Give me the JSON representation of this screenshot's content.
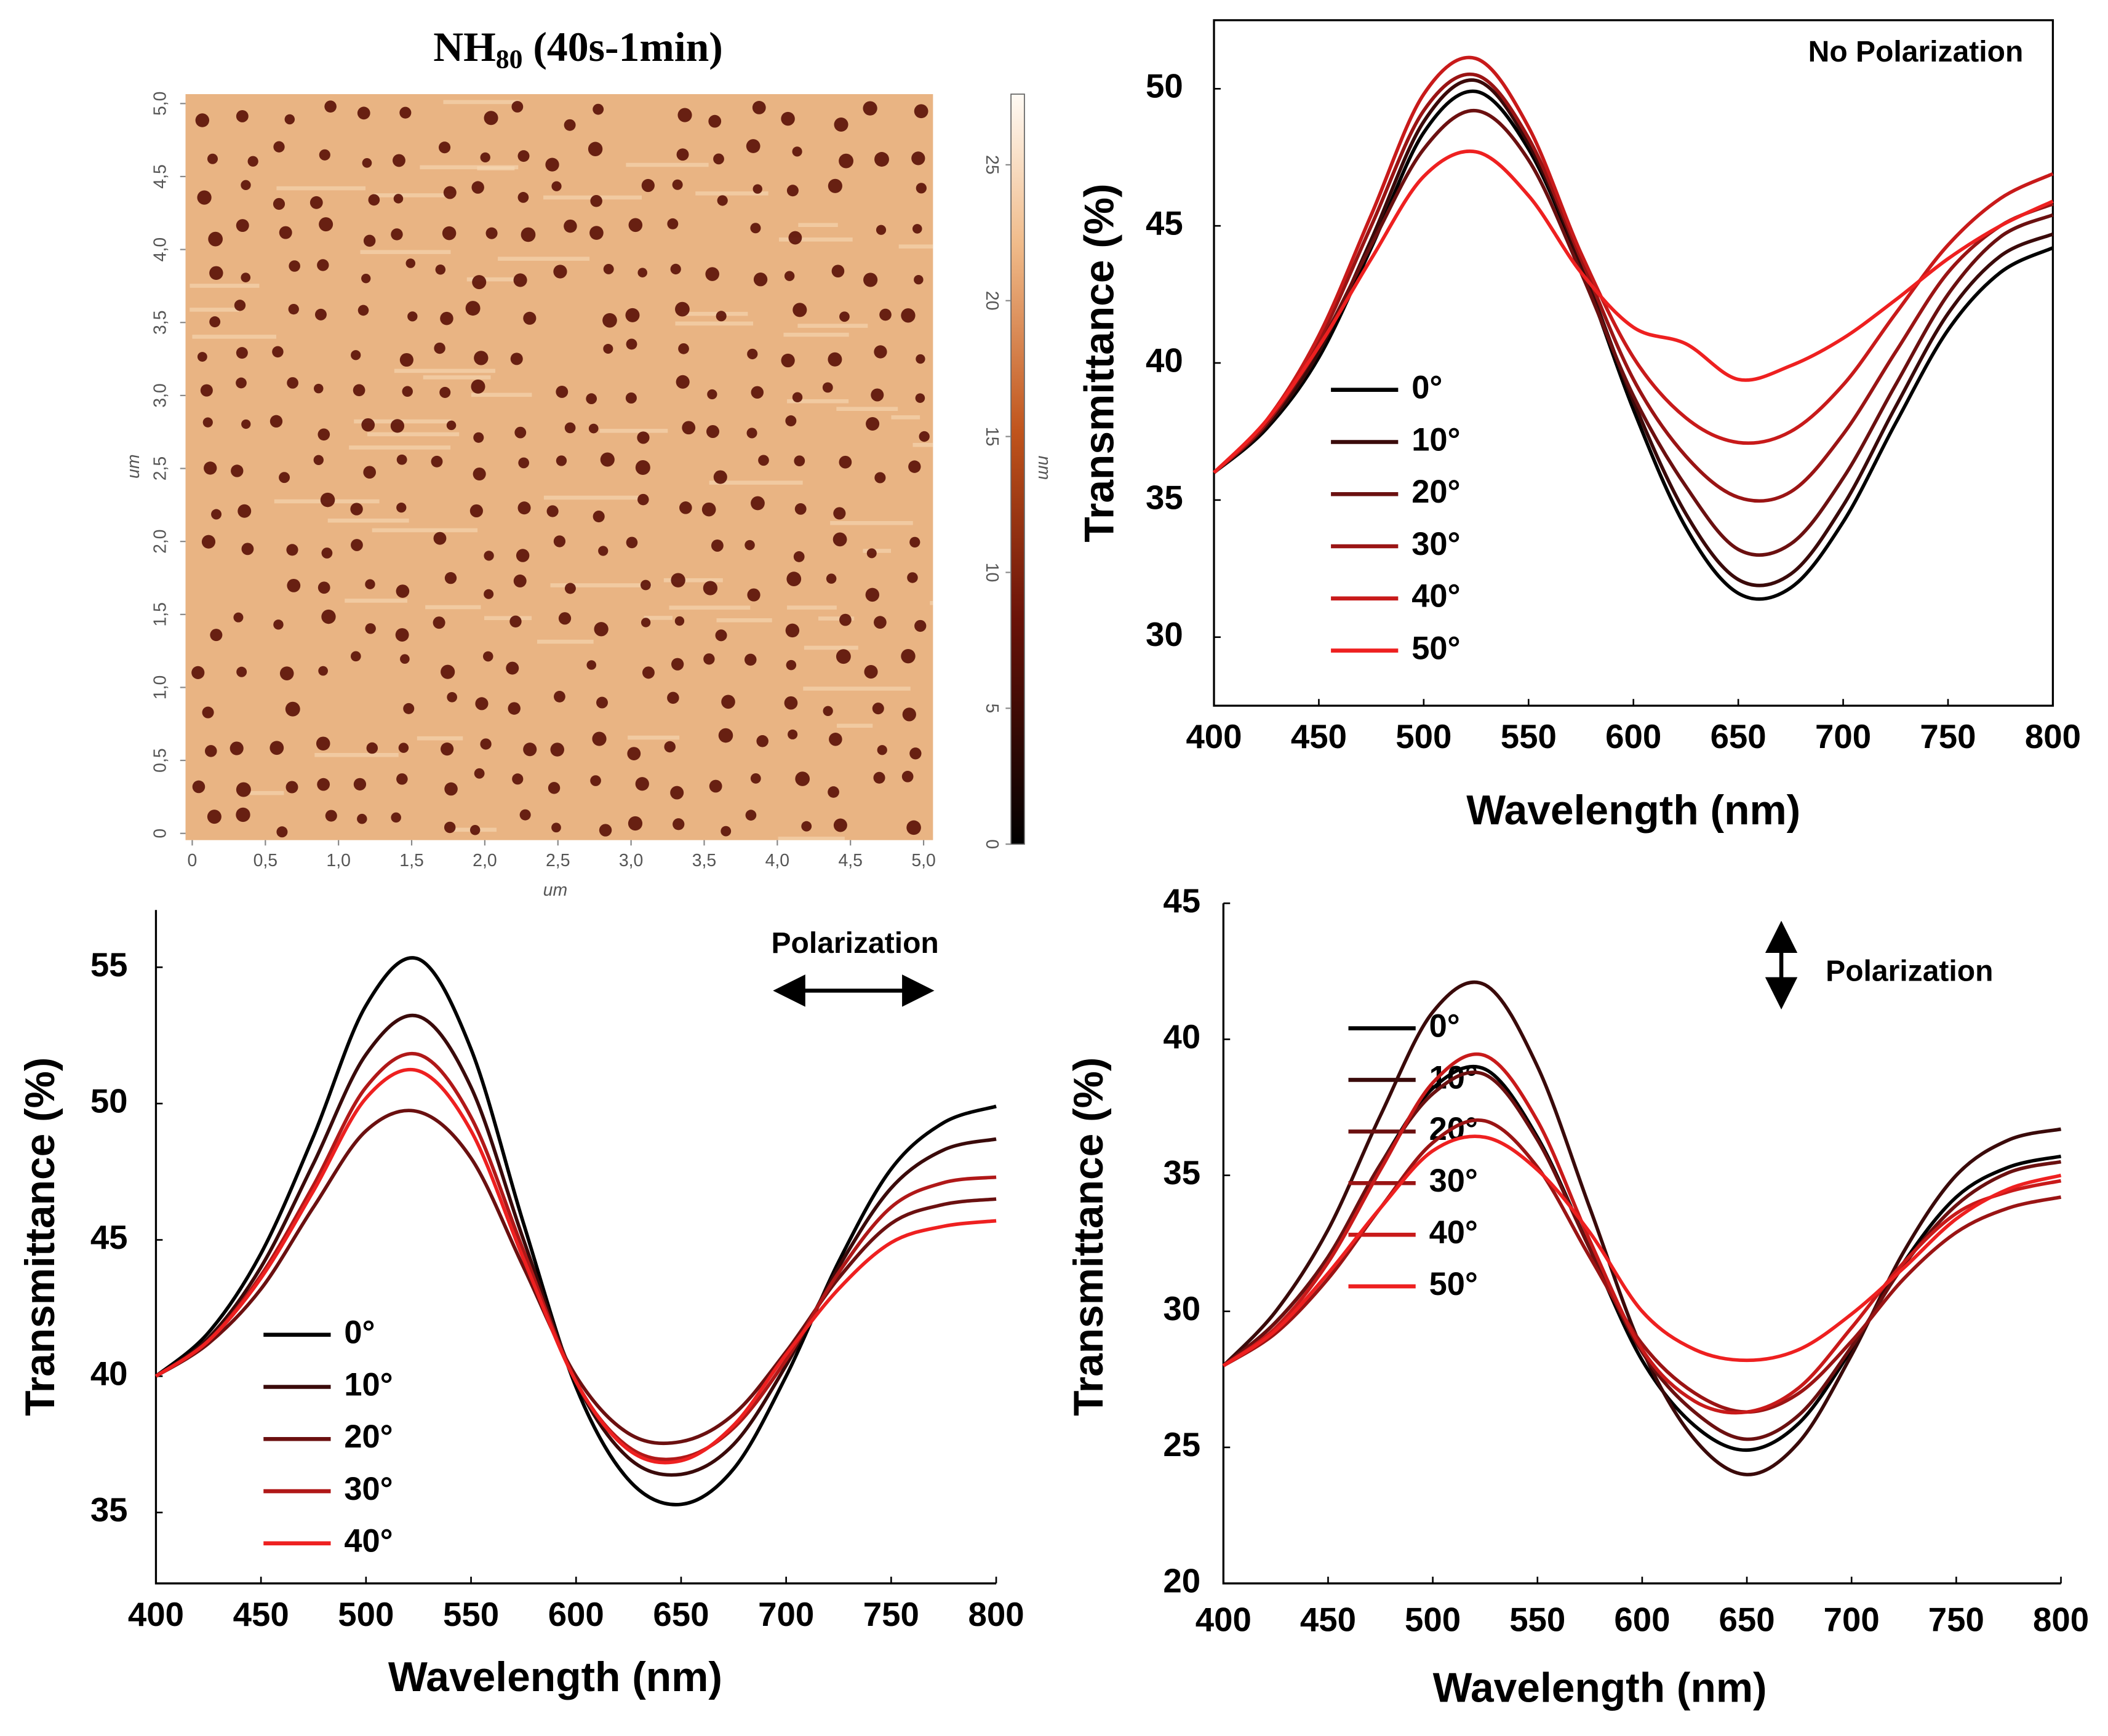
{
  "chart_data": [
    {
      "type": "heatmap",
      "title": "NH",
      "title_subscript": "80",
      "title_suffix": " (40s-1min)",
      "x_label": "um",
      "y_label": "um",
      "xlim": [
        0,
        5
      ],
      "ylim": [
        0,
        5
      ],
      "xticks": [
        0,
        {
          "value": 0.5,
          "label": "0,5"
        },
        {
          "value": 1,
          "label": "1,0"
        },
        {
          "value": 1.5,
          "label": "1,5"
        },
        {
          "value": 2,
          "label": "2,0"
        },
        {
          "value": 2.5,
          "label": "2,5"
        },
        {
          "value": 3,
          "label": "3,0"
        },
        {
          "value": 3.5,
          "label": "3,5"
        },
        {
          "value": 4,
          "label": "4,0"
        },
        {
          "value": 4.5,
          "label": "4,5"
        },
        {
          "value": 5,
          "label": "5,0"
        }
      ],
      "yticks": [
        0,
        {
          "value": 0.5,
          "label": "0,5"
        },
        {
          "value": 1,
          "label": "1,0"
        },
        {
          "value": 1.5,
          "label": "1,5"
        },
        {
          "value": 2,
          "label": "2,0"
        },
        {
          "value": 2.5,
          "label": "2,5"
        },
        {
          "value": 3,
          "label": "3,0"
        },
        {
          "value": 3.5,
          "label": "3,5"
        },
        {
          "value": 4,
          "label": "4,0"
        },
        {
          "value": 4.5,
          "label": "4,5"
        },
        {
          "value": 5,
          "label": "5,0"
        }
      ],
      "colorbar": {
        "label": "nm",
        "lim": [
          0,
          27.6
        ],
        "ticks": [
          0,
          5,
          10,
          15,
          20,
          25
        ]
      }
    },
    {
      "type": "line",
      "annotation": "No Polarization",
      "x_label": "Wavelength (nm)",
      "y_label": "Transmittance (%)",
      "xlim": [
        400,
        800
      ],
      "ylim": [
        27.5,
        52.5
      ],
      "xticks": [
        400,
        450,
        500,
        550,
        600,
        650,
        700,
        750,
        800
      ],
      "yticks": [
        30,
        35,
        40,
        45,
        50
      ],
      "x": [
        400,
        425,
        450,
        475,
        500,
        525,
        550,
        575,
        600,
        625,
        650,
        675,
        700,
        725,
        750,
        775,
        800
      ],
      "series": [
        {
          "name": "0°",
          "color": "#000000",
          "values": [
            36,
            37.6,
            40.2,
            44.2,
            48.4,
            49.9,
            47.8,
            43.5,
            38.3,
            34.0,
            31.6,
            31.8,
            34.2,
            37.8,
            41.2,
            43.3,
            44.2
          ]
        },
        {
          "name": "10°",
          "color": "#3a0a0a",
          "values": [
            36,
            37.7,
            40.4,
            44.5,
            48.8,
            50.3,
            48.0,
            43.6,
            38.6,
            34.5,
            32.1,
            32.3,
            34.8,
            38.4,
            41.8,
            43.9,
            44.7
          ]
        },
        {
          "name": "20°",
          "color": "#6b1010",
          "values": [
            36,
            37.8,
            40.6,
            44.3,
            47.8,
            49.2,
            47.4,
            43.3,
            38.8,
            35.5,
            33.2,
            33.4,
            35.8,
            39.2,
            42.5,
            44.6,
            45.4
          ]
        },
        {
          "name": "30°",
          "color": "#9a1414",
          "values": [
            36,
            37.8,
            40.8,
            45.0,
            49.2,
            50.5,
            48.2,
            43.8,
            39.4,
            36.6,
            35.1,
            35.3,
            37.4,
            40.4,
            43.3,
            45.0,
            45.8
          ]
        },
        {
          "name": "40°",
          "color": "#c81a1a",
          "values": [
            36,
            37.9,
            41.0,
            45.4,
            49.8,
            51.1,
            48.6,
            44.0,
            40.2,
            38.0,
            37.1,
            37.5,
            39.2,
            41.8,
            44.3,
            46.0,
            46.9
          ]
        },
        {
          "name": "50°",
          "color": "#ee2020",
          "values": [
            36,
            37.9,
            40.6,
            43.8,
            46.8,
            47.7,
            46.1,
            43.3,
            41.3,
            40.7,
            39.4,
            39.9,
            40.9,
            42.3,
            43.8,
            45.0,
            45.9
          ]
        }
      ]
    },
    {
      "type": "line",
      "annotation": "Polarization",
      "x_label": "Wavelength (nm)",
      "y_label": "Transmittance (%)",
      "xlim": [
        400,
        800
      ],
      "ylim": [
        32.4,
        57.1
      ],
      "xticks": [
        400,
        450,
        500,
        550,
        600,
        650,
        700,
        750,
        800
      ],
      "yticks": [
        35,
        40,
        45,
        50,
        55
      ],
      "x": [
        400,
        425,
        450,
        475,
        500,
        525,
        550,
        575,
        600,
        625,
        650,
        675,
        700,
        725,
        750,
        775,
        800
      ],
      "series": [
        {
          "name": "0°",
          "color": "#000000",
          "values": [
            40,
            41.6,
            44.5,
            48.8,
            53.6,
            55.3,
            52.0,
            45.6,
            39.6,
            36.2,
            35.3,
            36.6,
            40.0,
            44.2,
            47.6,
            49.3,
            49.9
          ]
        },
        {
          "name": "10°",
          "color": "#3a0a0a",
          "values": [
            40,
            41.4,
            44.0,
            47.8,
            51.8,
            53.2,
            50.6,
            45.0,
            39.8,
            37.0,
            36.4,
            37.5,
            40.4,
            44.0,
            46.9,
            48.3,
            48.7
          ]
        },
        {
          "name": "20°",
          "color": "#6b1010",
          "values": [
            40,
            41.2,
            43.2,
            46.2,
            49.0,
            49.7,
            48.0,
            44.0,
            40.0,
            37.9,
            37.6,
            38.6,
            40.9,
            43.6,
            45.6,
            46.3,
            46.5
          ]
        },
        {
          "name": "30°",
          "color": "#b01818",
          "values": [
            40,
            41.3,
            43.7,
            47.0,
            50.6,
            51.8,
            49.5,
            44.6,
            39.8,
            37.4,
            37.0,
            38.1,
            40.6,
            43.8,
            46.2,
            47.1,
            47.3
          ]
        },
        {
          "name": "40°",
          "color": "#ee2020",
          "values": [
            40,
            41.3,
            43.6,
            46.8,
            50.2,
            51.2,
            49.0,
            44.3,
            39.8,
            37.3,
            36.9,
            38.2,
            40.8,
            43.2,
            44.9,
            45.5,
            45.7
          ]
        }
      ]
    },
    {
      "type": "line",
      "annotation": "Polarization",
      "x_label": "Wavelength (nm)",
      "y_label": "Transmittance (%)",
      "xlim": [
        400,
        800
      ],
      "ylim": [
        20,
        45
      ],
      "xticks": [
        400,
        450,
        500,
        550,
        600,
        650,
        700,
        750,
        800
      ],
      "yticks": [
        20,
        25,
        30,
        35,
        40,
        45
      ],
      "x": [
        400,
        425,
        450,
        475,
        500,
        525,
        550,
        575,
        600,
        625,
        650,
        675,
        700,
        725,
        750,
        775,
        800
      ],
      "series": [
        {
          "name": "0°",
          "color": "#000000",
          "values": [
            28,
            29.6,
            32.0,
            35.4,
            38.2,
            38.9,
            36.4,
            32.3,
            28.2,
            25.8,
            24.9,
            25.9,
            28.6,
            31.8,
            34.2,
            35.3,
            35.7
          ]
        },
        {
          "name": "10°",
          "color": "#3a0a0a",
          "values": [
            28,
            30.0,
            33.0,
            37.2,
            41.0,
            42.0,
            39.0,
            33.8,
            28.6,
            25.3,
            24.0,
            25.2,
            28.4,
            32.2,
            35.0,
            36.3,
            36.7
          ]
        },
        {
          "name": "20°",
          "color": "#6b1010",
          "values": [
            28,
            29.6,
            32.0,
            35.4,
            38.0,
            38.7,
            36.3,
            32.3,
            28.5,
            26.3,
            25.3,
            26.2,
            28.7,
            31.7,
            33.9,
            35.1,
            35.5
          ]
        },
        {
          "name": "30°",
          "color": "#9a1414",
          "values": [
            28,
            29.2,
            31.2,
            33.8,
            36.2,
            37.0,
            35.3,
            32.0,
            28.8,
            27.0,
            26.3,
            27.0,
            28.9,
            31.2,
            32.9,
            33.8,
            34.2
          ]
        },
        {
          "name": "40°",
          "color": "#c81a1a",
          "values": [
            28,
            29.4,
            31.8,
            35.2,
            38.4,
            39.4,
            37.0,
            32.6,
            28.6,
            26.7,
            26.3,
            27.2,
            29.4,
            31.8,
            33.6,
            34.4,
            34.8
          ]
        },
        {
          "name": "50°",
          "color": "#ee2020",
          "values": [
            28,
            29.3,
            31.4,
            33.8,
            35.9,
            36.4,
            35.2,
            32.9,
            30.0,
            28.6,
            28.2,
            28.6,
            29.9,
            31.6,
            33.4,
            34.5,
            35.0
          ]
        }
      ]
    }
  ]
}
